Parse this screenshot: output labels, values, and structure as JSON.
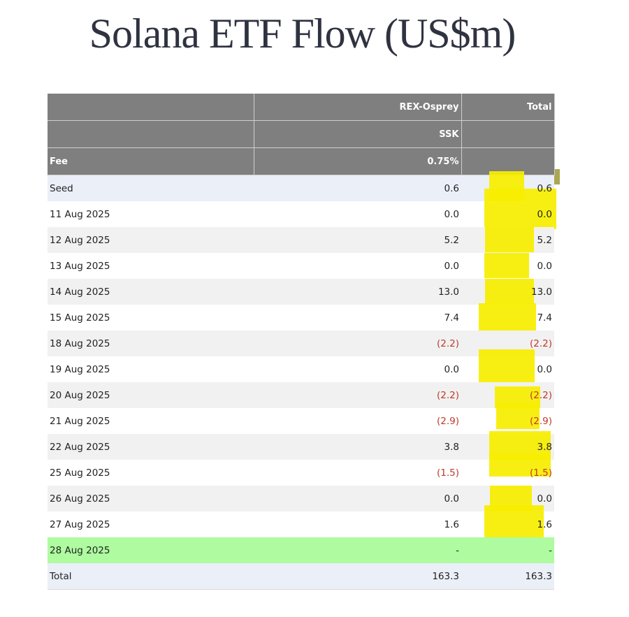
{
  "title": "Solana ETF Flow (US$m)",
  "header": {
    "row1": {
      "col1": "",
      "col2": "REX-Osprey",
      "col3": "Total"
    },
    "row2": {
      "col1": "",
      "col2": "SSK",
      "col3": ""
    },
    "row3": {
      "col1": "Fee",
      "col2": "0.75%",
      "col3": ""
    }
  },
  "rows": [
    {
      "label": "Seed",
      "ssk": "0.6",
      "total": "0.6"
    },
    {
      "label": "11 Aug 2025",
      "ssk": "0.0",
      "total": "0.0"
    },
    {
      "label": "12 Aug 2025",
      "ssk": "5.2",
      "total": "5.2"
    },
    {
      "label": "13 Aug 2025",
      "ssk": "0.0",
      "total": "0.0"
    },
    {
      "label": "14 Aug 2025",
      "ssk": "13.0",
      "total": "13.0"
    },
    {
      "label": "15 Aug 2025",
      "ssk": "7.4",
      "total": "7.4"
    },
    {
      "label": "18 Aug 2025",
      "ssk": "(2.2)",
      "total": "(2.2)"
    },
    {
      "label": "19 Aug 2025",
      "ssk": "0.0",
      "total": "0.0"
    },
    {
      "label": "20 Aug 2025",
      "ssk": "(2.2)",
      "total": "(2.2)"
    },
    {
      "label": "21 Aug 2025",
      "ssk": "(2.9)",
      "total": "(2.9)"
    },
    {
      "label": "22 Aug 2025",
      "ssk": "3.8",
      "total": "3.8"
    },
    {
      "label": "25 Aug 2025",
      "ssk": "(1.5)",
      "total": "(1.5)"
    },
    {
      "label": "26 Aug 2025",
      "ssk": "0.0",
      "total": "0.0"
    },
    {
      "label": "27 Aug 2025",
      "ssk": "1.6",
      "total": "1.6"
    },
    {
      "label": "28 Aug 2025",
      "ssk": "-",
      "total": "-"
    }
  ],
  "total_row": {
    "label": "Total",
    "ssk": "163.3",
    "total": "163.3"
  },
  "colors": {
    "header_bg": "#7f7f7f",
    "negative": "#c0392b",
    "highlight_row": "#aefba0",
    "highlighter_marker": "#f7ee00"
  }
}
